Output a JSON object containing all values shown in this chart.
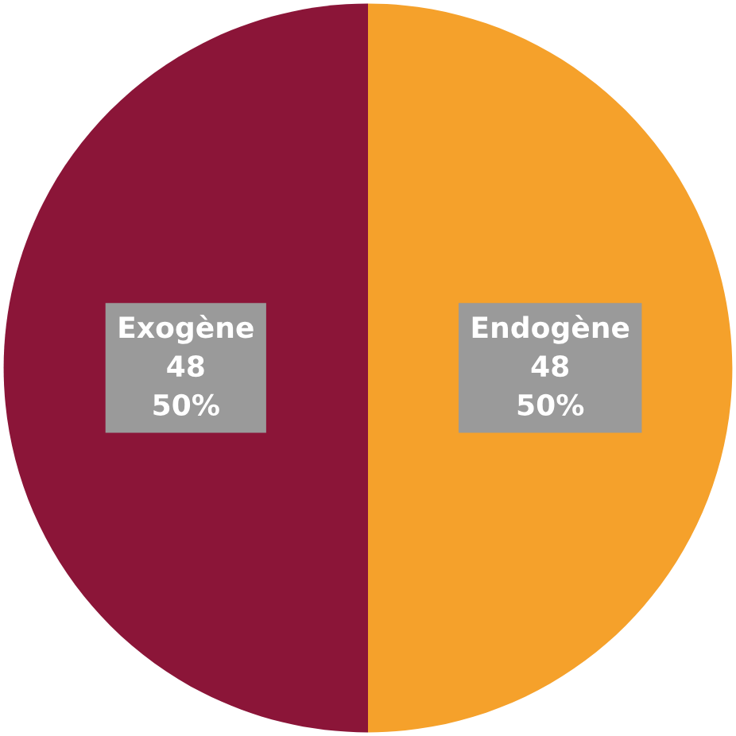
{
  "chart_data": {
    "type": "pie",
    "categories": [
      "Exogène",
      "Endogène"
    ],
    "values": [
      48,
      48
    ],
    "colors": [
      "#8b1538",
      "#f5a12b"
    ],
    "value_labels": [
      "48\n50%",
      "48\n50%"
    ]
  }
}
